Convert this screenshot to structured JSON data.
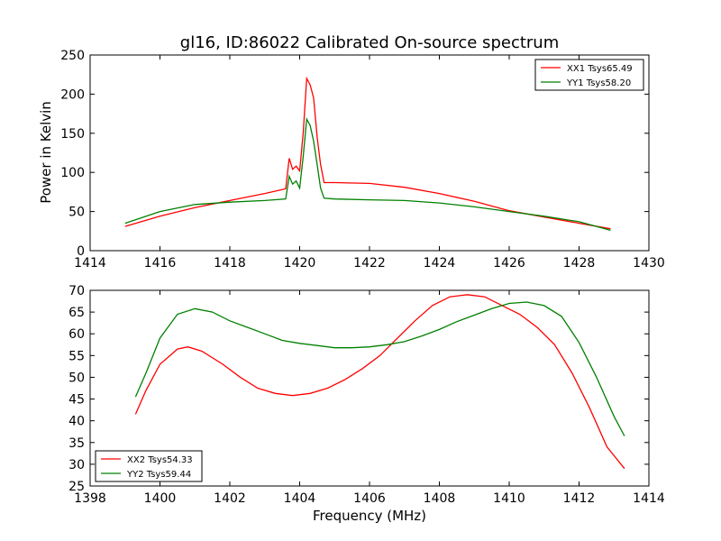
{
  "chart_data": [
    {
      "type": "line",
      "title": "gl16, ID:86022 Calibrated On-source spectrum",
      "xlabel": "",
      "ylabel": "Power in Kelvin",
      "xlim": [
        1414,
        1430
      ],
      "ylim": [
        0,
        250
      ],
      "xticks": [
        "1414",
        "1416",
        "1418",
        "1420",
        "1422",
        "1424",
        "1426",
        "1428",
        "1430"
      ],
      "yticks": [
        "0",
        "50",
        "100",
        "150",
        "200",
        "250"
      ],
      "legend_position": "top-right",
      "series": [
        {
          "name": "XX1 Tsys65.49",
          "color": "#ff0000",
          "points": [
            [
              1415.0,
              31
            ],
            [
              1416.0,
              44
            ],
            [
              1417.0,
              55
            ],
            [
              1418.0,
              64
            ],
            [
              1419.0,
              73
            ],
            [
              1419.6,
              79
            ],
            [
              1419.7,
              118
            ],
            [
              1419.8,
              104
            ],
            [
              1419.9,
              108
            ],
            [
              1420.0,
              102
            ],
            [
              1420.1,
              150
            ],
            [
              1420.2,
              220
            ],
            [
              1420.3,
              212
            ],
            [
              1420.4,
              195
            ],
            [
              1420.5,
              145
            ],
            [
              1420.6,
              110
            ],
            [
              1420.7,
              87
            ],
            [
              1421.0,
              87
            ],
            [
              1422.0,
              86
            ],
            [
              1423.0,
              81
            ],
            [
              1424.0,
              73
            ],
            [
              1425.0,
              63
            ],
            [
              1426.0,
              51
            ],
            [
              1427.0,
              43
            ],
            [
              1428.0,
              35
            ],
            [
              1428.9,
              28
            ]
          ]
        },
        {
          "name": "YY1 Tsys58.20",
          "color": "#008000",
          "points": [
            [
              1415.0,
              35
            ],
            [
              1416.0,
              50
            ],
            [
              1417.0,
              59
            ],
            [
              1418.0,
              62
            ],
            [
              1419.0,
              64
            ],
            [
              1419.6,
              66
            ],
            [
              1419.7,
              95
            ],
            [
              1419.8,
              85
            ],
            [
              1419.9,
              89
            ],
            [
              1420.0,
              80
            ],
            [
              1420.1,
              120
            ],
            [
              1420.2,
              168
            ],
            [
              1420.3,
              160
            ],
            [
              1420.4,
              140
            ],
            [
              1420.5,
              110
            ],
            [
              1420.6,
              80
            ],
            [
              1420.7,
              67
            ],
            [
              1421.0,
              66
            ],
            [
              1422.0,
              65
            ],
            [
              1423.0,
              64
            ],
            [
              1424.0,
              61
            ],
            [
              1425.0,
              56
            ],
            [
              1426.0,
              50
            ],
            [
              1427.0,
              44
            ],
            [
              1428.0,
              37
            ],
            [
              1428.9,
              26
            ]
          ]
        }
      ]
    },
    {
      "type": "line",
      "title": "",
      "xlabel": "Frequency (MHz)",
      "ylabel": "",
      "xlim": [
        1398,
        1414
      ],
      "ylim": [
        25,
        70
      ],
      "xticks": [
        "1398",
        "1400",
        "1402",
        "1404",
        "1406",
        "1408",
        "1410",
        "1412",
        "1414"
      ],
      "yticks": [
        "25",
        "30",
        "35",
        "40",
        "45",
        "50",
        "55",
        "60",
        "65",
        "70"
      ],
      "legend_position": "bottom-left",
      "series": [
        {
          "name": "XX2 Tsys54.33",
          "color": "#ff0000",
          "points": [
            [
              1399.3,
              41.5
            ],
            [
              1399.6,
              47
            ],
            [
              1400.0,
              53
            ],
            [
              1400.5,
              56.5
            ],
            [
              1400.8,
              57
            ],
            [
              1401.2,
              56
            ],
            [
              1401.8,
              53
            ],
            [
              1402.3,
              50
            ],
            [
              1402.8,
              47.5
            ],
            [
              1403.3,
              46.3
            ],
            [
              1403.8,
              45.8
            ],
            [
              1404.3,
              46.3
            ],
            [
              1404.8,
              47.5
            ],
            [
              1405.3,
              49.5
            ],
            [
              1405.8,
              52
            ],
            [
              1406.3,
              55
            ],
            [
              1406.8,
              59
            ],
            [
              1407.3,
              63
            ],
            [
              1407.8,
              66.5
            ],
            [
              1408.3,
              68.5
            ],
            [
              1408.8,
              69
            ],
            [
              1409.3,
              68.5
            ],
            [
              1409.8,
              66.5
            ],
            [
              1410.3,
              64.5
            ],
            [
              1410.8,
              61.5
            ],
            [
              1411.3,
              57.5
            ],
            [
              1411.8,
              51
            ],
            [
              1412.3,
              43
            ],
            [
              1412.8,
              34
            ],
            [
              1413.3,
              29
            ]
          ]
        },
        {
          "name": "YY2 Tsys59.44",
          "color": "#008000",
          "points": [
            [
              1399.3,
              45.5
            ],
            [
              1399.6,
              51
            ],
            [
              1400.0,
              59
            ],
            [
              1400.5,
              64.5
            ],
            [
              1401.0,
              65.8
            ],
            [
              1401.5,
              65
            ],
            [
              1402.0,
              63
            ],
            [
              1402.5,
              61.5
            ],
            [
              1403.0,
              60
            ],
            [
              1403.5,
              58.5
            ],
            [
              1404.0,
              57.8
            ],
            [
              1404.5,
              57.3
            ],
            [
              1405.0,
              56.8
            ],
            [
              1405.5,
              56.8
            ],
            [
              1406.0,
              57
            ],
            [
              1406.5,
              57.5
            ],
            [
              1407.0,
              58.2
            ],
            [
              1407.5,
              59.5
            ],
            [
              1408.0,
              61
            ],
            [
              1408.5,
              62.8
            ],
            [
              1409.0,
              64.3
            ],
            [
              1409.5,
              65.8
            ],
            [
              1410.0,
              67
            ],
            [
              1410.5,
              67.3
            ],
            [
              1411.0,
              66.5
            ],
            [
              1411.5,
              64
            ],
            [
              1412.0,
              58
            ],
            [
              1412.5,
              50
            ],
            [
              1413.0,
              41
            ],
            [
              1413.3,
              36.5
            ]
          ]
        }
      ]
    }
  ]
}
